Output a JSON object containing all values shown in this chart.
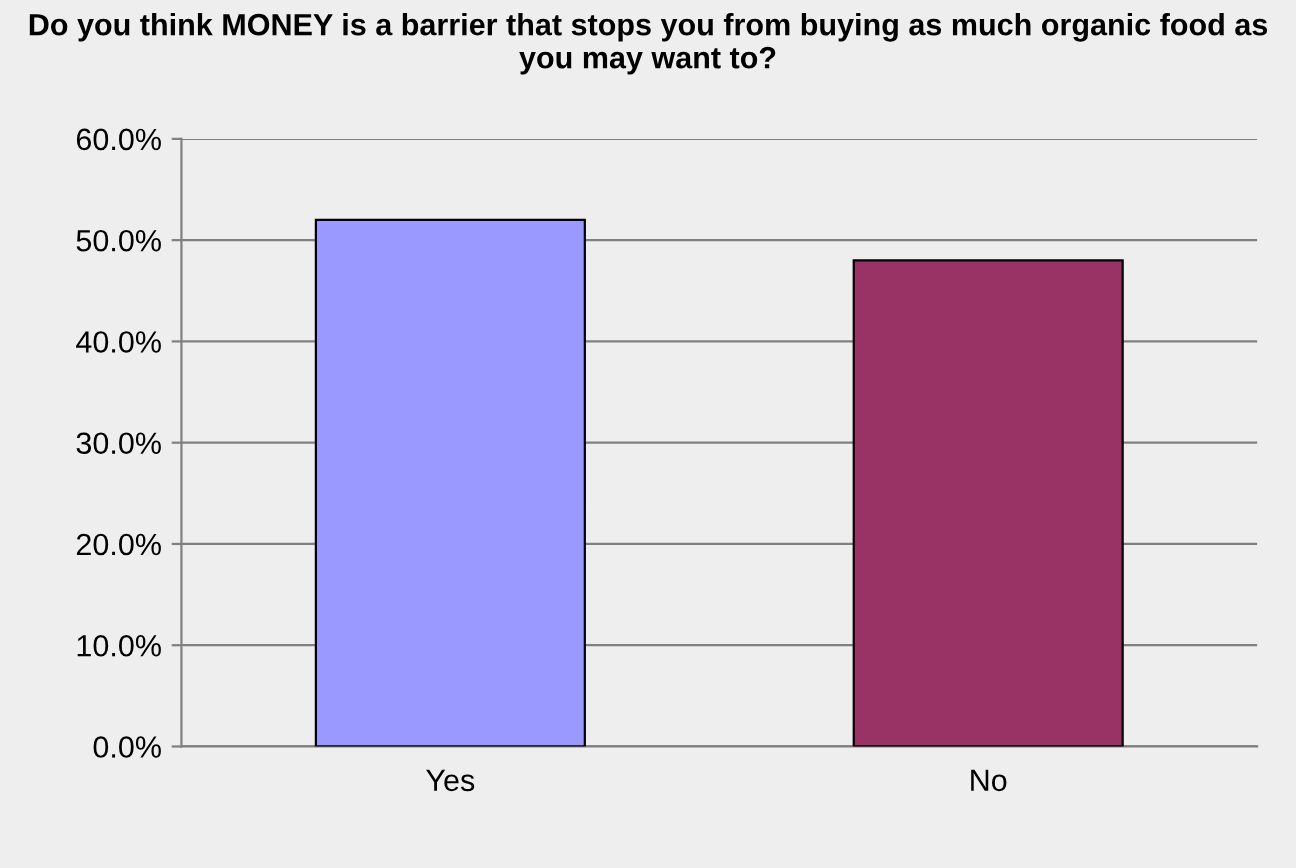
{
  "chart_data": {
    "type": "bar",
    "title": "Do you think MONEY is a barrier that stops you from buying as much organic food as you may want to?",
    "categories": [
      "Yes",
      "No"
    ],
    "values": [
      52,
      48
    ],
    "colors": [
      "#9999ff",
      "#993366"
    ],
    "ylim": [
      0,
      60
    ],
    "yticks": [
      {
        "value": 0,
        "label": "0.0%"
      },
      {
        "value": 10,
        "label": "10.0%"
      },
      {
        "value": 20,
        "label": "20.0%"
      },
      {
        "value": 30,
        "label": "30.0%"
      },
      {
        "value": 40,
        "label": "40.0%"
      },
      {
        "value": 50,
        "label": "50.0%"
      },
      {
        "value": 60,
        "label": "60.0%"
      }
    ],
    "grid": "y",
    "legend": false
  }
}
